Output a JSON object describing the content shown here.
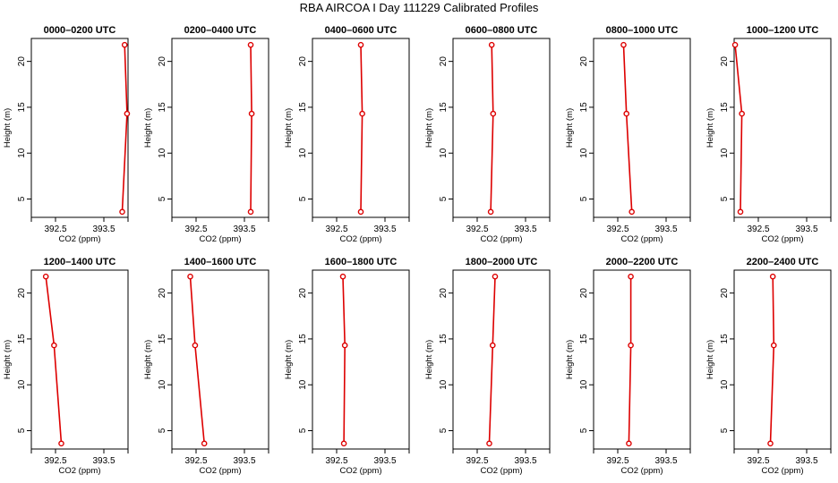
{
  "title": "RBA AIRCOA I  Day 111229  Calibrated Profiles",
  "chart_data": {
    "type": "line",
    "xlabel": "CO2 (ppm)",
    "ylabel": "Height (m)",
    "xlim": [
      392.0,
      394.0
    ],
    "ylim": [
      3.0,
      22.5
    ],
    "xticks": [
      392.5,
      393.5
    ],
    "xtick_labels": [
      "392.5",
      "393.5"
    ],
    "yticks": [
      5,
      10,
      15,
      20
    ],
    "ytick_labels": [
      "5",
      "10",
      "15",
      "20"
    ],
    "heights": [
      3.6,
      14.3,
      21.8
    ],
    "panels": [
      {
        "title": "0000–0200 UTC",
        "co2": [
          393.88,
          393.98,
          393.93
        ]
      },
      {
        "title": "0200–0400 UTC",
        "co2": [
          393.63,
          393.65,
          393.63
        ]
      },
      {
        "title": "0400–0600 UTC",
        "co2": [
          393.0,
          393.03,
          393.0
        ]
      },
      {
        "title": "0600–0800 UTC",
        "co2": [
          392.78,
          392.83,
          392.8
        ]
      },
      {
        "title": "0800–1000 UTC",
        "co2": [
          392.79,
          392.68,
          392.62
        ]
      },
      {
        "title": "1000–1200 UTC",
        "co2": [
          392.13,
          392.16,
          392.02
        ]
      },
      {
        "title": "1200–1400 UTC",
        "co2": [
          392.62,
          392.47,
          392.3
        ]
      },
      {
        "title": "1400–1600 UTC",
        "co2": [
          392.67,
          392.48,
          392.38
        ]
      },
      {
        "title": "1600–1800 UTC",
        "co2": [
          392.65,
          392.67,
          392.63
        ]
      },
      {
        "title": "1800–2000 UTC",
        "co2": [
          392.75,
          392.82,
          392.87
        ]
      },
      {
        "title": "2000–2200 UTC",
        "co2": [
          392.73,
          392.77,
          392.77
        ]
      },
      {
        "title": "2200–2400 UTC",
        "co2": [
          392.75,
          392.82,
          392.8
        ]
      }
    ],
    "colors": {
      "line": "#dd0000",
      "marker_fill": "#ffffff",
      "axes": "#000000"
    },
    "grid": false,
    "legend": "none"
  }
}
